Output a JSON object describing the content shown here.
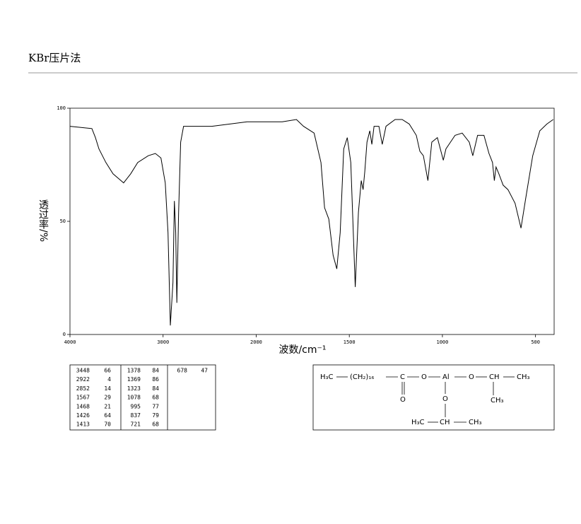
{
  "header": {
    "title": "KBr压片法"
  },
  "chart_data": {
    "type": "line",
    "x_label": "波数/cm⁻¹",
    "y_label": "透过率/%",
    "xlim": [
      4000,
      400
    ],
    "xbreak": 2000,
    "xbreak_scale": 2,
    "ylim": [
      0,
      100
    ],
    "xticks": [
      4000,
      3000,
      2000,
      1500,
      1000,
      500
    ],
    "yticks": [
      0,
      50,
      100
    ],
    "x": [
      4000,
      3765,
      3727,
      3689,
      3614,
      3538,
      3424,
      3348,
      3273,
      3159,
      3083,
      3023,
      2977,
      2947,
      2922,
      2894,
      2879,
      2864,
      2852,
      2833,
      2811,
      2780,
      2629,
      2477,
      2098,
      1860,
      1784,
      1746,
      1689,
      1652,
      1633,
      1610,
      1587,
      1567,
      1549,
      1530,
      1511,
      1492,
      1468,
      1451,
      1436,
      1426,
      1417,
      1405,
      1390,
      1379,
      1367,
      1341,
      1323,
      1303,
      1254,
      1216,
      1178,
      1140,
      1121,
      1102,
      1078,
      1057,
      1027,
      995,
      981,
      932,
      894,
      856,
      837,
      811,
      777,
      750,
      731,
      721,
      712,
      697,
      674,
      648,
      610,
      578,
      553,
      515,
      477,
      439,
      405
    ],
    "series": [
      {
        "color": "#000000",
        "values": [
          92,
          91,
          87,
          82,
          76,
          71,
          67,
          71,
          76,
          79,
          80,
          78,
          67,
          45,
          4,
          23,
          59,
          45,
          14,
          54,
          85,
          92,
          92,
          92,
          94,
          94,
          95,
          92,
          89,
          76,
          56,
          51,
          35,
          29,
          45,
          82,
          87,
          76,
          21,
          54,
          68,
          64,
          72,
          85,
          90,
          84,
          92,
          92,
          84,
          92,
          95,
          95,
          93,
          88,
          81,
          79,
          68,
          85,
          87,
          77,
          82,
          88,
          89,
          85,
          79,
          88,
          88,
          80,
          76,
          68,
          74,
          71,
          66,
          64,
          58,
          47,
          60,
          79,
          90,
          93,
          95
        ]
      }
    ],
    "peak_table": [
      [
        [
          3448,
          66
        ],
        [
          2922,
          4
        ],
        [
          2852,
          14
        ],
        [
          1567,
          29
        ],
        [
          1468,
          21
        ],
        [
          1426,
          64
        ],
        [
          1413,
          70
        ]
      ],
      [
        [
          1378,
          84
        ],
        [
          1369,
          86
        ],
        [
          1323,
          84
        ],
        [
          1078,
          68
        ],
        [
          995,
          77
        ],
        [
          837,
          79
        ],
        [
          721,
          68
        ]
      ],
      [
        [
          678,
          47
        ]
      ]
    ]
  },
  "structure": {
    "atoms": [
      "H₃C",
      "(CH₂)₁₆",
      "C",
      "O",
      "Al",
      "O",
      "CH",
      "CH₃",
      "O",
      "CH₃",
      "O",
      "H₃C",
      "CH",
      "CH₃"
    ]
  }
}
